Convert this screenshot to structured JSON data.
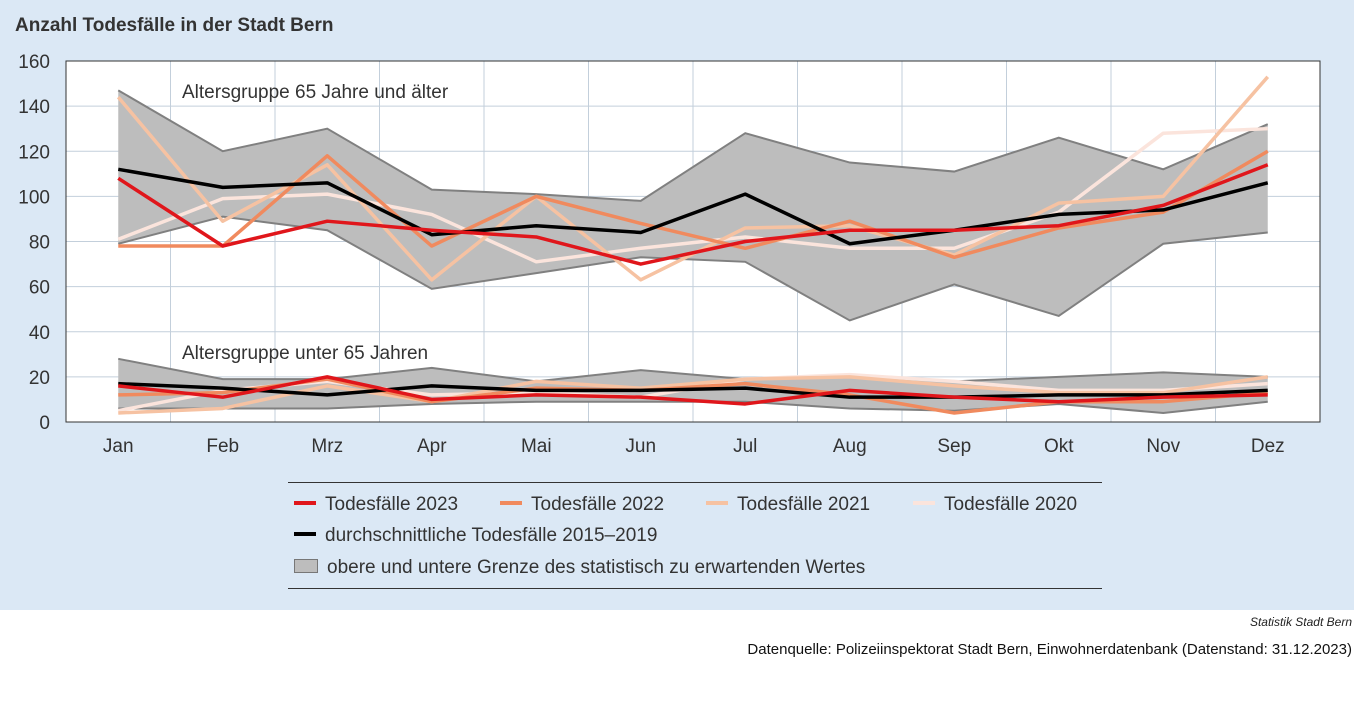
{
  "title": "Anzahl Todesfälle in der Stadt Bern",
  "credit": "Statistik Stadt Bern",
  "datasource": "Datenquelle: Polizeiinspektorat Stadt Bern, Einwohnerdatenbank (Datenstand: 31.12.2023)",
  "colors": {
    "y2023": "#e0161b",
    "y2022": "#f08a5e",
    "y2021": "#f6c2a2",
    "y2020": "#fbe4dc",
    "avg": "#000000",
    "band_fill": "#bdbdbd",
    "band_edge": "#808080",
    "panel": "#dbe8f5",
    "plot_bg": "#ffffff"
  },
  "legend": {
    "y2023": "Todesfälle 2023",
    "y2022": "Todesfälle 2022",
    "y2021": "Todesfälle 2021",
    "y2020": "Todesfälle 2020",
    "avg": "durchschnittliche Todesfälle 2015–2019",
    "band": "obere und untere Grenze des statistisch zu erwartenden Wertes"
  },
  "chart_data": {
    "type": "line",
    "title": "Anzahl Todesfälle in der Stadt Bern",
    "categories": [
      "Jan",
      "Feb",
      "Mrz",
      "Apr",
      "Mai",
      "Jun",
      "Jul",
      "Aug",
      "Sep",
      "Okt",
      "Nov",
      "Dez"
    ],
    "yticks": [
      0,
      20,
      40,
      60,
      80,
      100,
      120,
      140,
      160
    ],
    "ylim": [
      0,
      160
    ],
    "grid": true,
    "legend_position": "bottom",
    "groups": [
      {
        "label": "Altersgruppe 65 Jahre und älter",
        "band_upper": [
          147,
          120,
          130,
          103,
          101,
          98,
          128,
          115,
          111,
          126,
          112,
          132
        ],
        "band_lower": [
          79,
          91,
          85,
          59,
          66,
          73,
          71,
          45,
          61,
          47,
          79,
          84
        ],
        "series": [
          {
            "key": "y2020",
            "name": "Todesfälle 2020",
            "values": [
              81,
              99,
              101,
              92,
              71,
              77,
              82,
              77,
              77,
              93,
              128,
              130
            ]
          },
          {
            "key": "y2021",
            "name": "Todesfälle 2021",
            "values": [
              144,
              89,
              114,
              63,
              100,
              63,
              86,
              87,
              74,
              97,
              100,
              153
            ]
          },
          {
            "key": "y2022",
            "name": "Todesfälle 2022",
            "values": [
              78,
              78,
              118,
              78,
              100,
              88,
              77,
              89,
              73,
              86,
              93,
              120
            ]
          },
          {
            "key": "avg",
            "name": "durchschnittliche Todesfälle 2015–2019",
            "values": [
              112,
              104,
              106,
              83,
              87,
              84,
              101,
              79,
              85,
              92,
              94,
              106
            ]
          },
          {
            "key": "y2023",
            "name": "Todesfälle 2023",
            "values": [
              108,
              78,
              89,
              85,
              82,
              70,
              80,
              85,
              85,
              87,
              96,
              114
            ]
          }
        ]
      },
      {
        "label": "Altersgruppe unter 65 Jahren",
        "band_upper": [
          28,
          19,
          19,
          24,
          18,
          23,
          19,
          21,
          18,
          20,
          22,
          20
        ],
        "band_lower": [
          6,
          6,
          6,
          8,
          9,
          9,
          9,
          6,
          5,
          8,
          4,
          9
        ],
        "series": [
          {
            "key": "y2020",
            "name": "Todesfälle 2020",
            "values": [
              5,
              14,
              18,
              12,
              13,
              11,
              19,
              21,
              18,
              14,
              14,
              17
            ]
          },
          {
            "key": "y2021",
            "name": "Todesfälle 2021",
            "values": [
              4,
              6,
              16,
              9,
              18,
              15,
              19,
              20,
              16,
              13,
              13,
              20
            ]
          },
          {
            "key": "y2022",
            "name": "Todesfälle 2022",
            "values": [
              12,
              13,
              19,
              9,
              15,
              14,
              17,
              12,
              4,
              9,
              9,
              13
            ]
          },
          {
            "key": "avg",
            "name": "durchschnittliche Todesfälle 2015–2019",
            "values": [
              17,
              15,
              12,
              16,
              14,
              14,
              15,
              11,
              11,
              12,
              12,
              14
            ]
          },
          {
            "key": "y2023",
            "name": "Todesfälle 2023",
            "values": [
              16,
              11,
              20,
              10,
              12,
              11,
              8,
              14,
              11,
              9,
              11,
              12
            ]
          }
        ]
      }
    ]
  }
}
